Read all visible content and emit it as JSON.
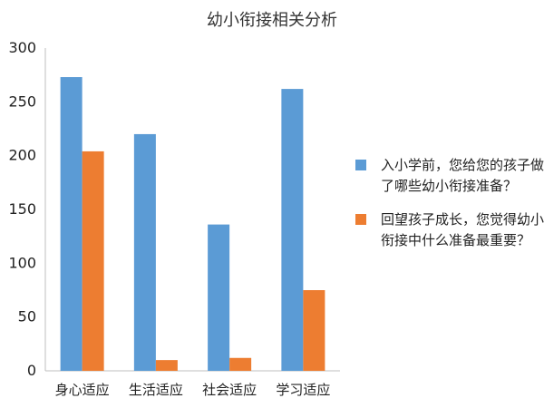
{
  "chart_data": {
    "type": "bar",
    "title": "幼小衔接相关分析",
    "xlabel": "",
    "ylabel": "",
    "categories": [
      "身心适应",
      "生活适应",
      "社会适应",
      "学习适应"
    ],
    "series": [
      {
        "name": "入小学前，您给您的孩子做了哪些幼小衔接准备？",
        "color": "#5B9BD5",
        "values": [
          273,
          220,
          136,
          262
        ]
      },
      {
        "name": "回望孩子成长，您觉得幼小衔接中什么准备最重要？",
        "color": "#ED7D31",
        "values": [
          204,
          10,
          12,
          75
        ]
      }
    ],
    "ylim": [
      0,
      300
    ],
    "yticks": [
      0,
      50,
      100,
      150,
      200,
      250,
      300
    ],
    "grid": false,
    "legend_position": "right"
  }
}
